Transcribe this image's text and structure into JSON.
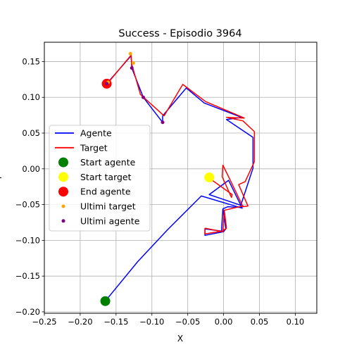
{
  "chart_data": {
    "type": "line",
    "title": "Success - Episodio 3964",
    "xlabel": "X",
    "ylabel": "Y",
    "xlim": [
      -0.25,
      0.13
    ],
    "ylim": [
      -0.202,
      0.177
    ],
    "xticks": [
      -0.25,
      -0.2,
      -0.15,
      -0.1,
      -0.05,
      0.0,
      0.05,
      0.1
    ],
    "xtick_labels": [
      "−0.25",
      "−0.20",
      "−0.15",
      "−0.10",
      "−0.05",
      "0.00",
      "0.05",
      "0.10"
    ],
    "yticks": [
      -0.2,
      -0.15,
      -0.1,
      -0.05,
      0.0,
      0.05,
      0.1,
      0.15
    ],
    "ytick_labels": [
      "−0.20",
      "−0.15",
      "−0.10",
      "−0.05",
      "0.00",
      "0.05",
      "0.10",
      "0.15"
    ],
    "grid": true,
    "legend_position": "center-left",
    "series": [
      {
        "name": "Agente",
        "kind": "line",
        "color": "#0000ff",
        "points": [
          [
            -0.165,
            -0.185
          ],
          [
            -0.12,
            -0.13
          ],
          [
            -0.078,
            -0.085
          ],
          [
            -0.031,
            -0.038
          ],
          [
            0.026,
            -0.055
          ],
          [
            0.007,
            -0.016
          ],
          [
            -0.02,
            -0.036
          ],
          [
            0.024,
            -0.051
          ],
          [
            0.041,
            0.001
          ],
          [
            0.041,
            0.044
          ],
          [
            0.004,
            0.069
          ],
          [
            0.025,
            0.072
          ],
          [
            -0.027,
            0.092
          ],
          [
            -0.052,
            0.113
          ],
          [
            -0.085,
            0.074
          ],
          [
            -0.085,
            0.065
          ],
          [
            -0.112,
            0.1
          ],
          [
            -0.128,
            0.141
          ],
          [
            -0.129,
            0.158
          ],
          [
            -0.163,
            0.119
          ]
        ]
      },
      {
        "name": "Target",
        "kind": "line",
        "color": "#ff0000",
        "points": [
          [
            -0.02,
            -0.013
          ],
          [
            0.012,
            -0.036
          ],
          [
            0.011,
            -0.04
          ],
          [
            -0.002,
            -0.011
          ],
          [
            -0.001,
            0.005
          ],
          [
            0.007,
            -0.011
          ],
          [
            0.027,
            -0.053
          ],
          [
            0.034,
            -0.052
          ],
          [
            0.021,
            -0.022
          ],
          [
            0.03,
            -0.018
          ],
          [
            0.043,
            0.01
          ],
          [
            0.043,
            0.052
          ],
          [
            0.027,
            0.067
          ],
          [
            0.004,
            0.072
          ],
          [
            0.029,
            0.071
          ],
          [
            -0.025,
            0.094
          ],
          [
            -0.057,
            0.118
          ],
          [
            -0.083,
            0.074
          ],
          [
            -0.116,
            0.104
          ],
          [
            -0.128,
            0.146
          ],
          [
            -0.129,
            0.159
          ],
          [
            -0.163,
            0.118
          ]
        ]
      },
      {
        "name": "Ultimi target",
        "kind": "scatter",
        "color": "#ffa500",
        "points": [
          [
            -0.13,
            0.161
          ],
          [
            -0.126,
            0.148
          ],
          [
            -0.161,
            0.121
          ]
        ]
      },
      {
        "name": "Ultimi agente",
        "kind": "scatter",
        "color": "#800080",
        "points": [
          [
            -0.128,
            0.141
          ],
          [
            -0.112,
            0.1
          ],
          [
            -0.085,
            0.065
          ],
          [
            -0.163,
            0.119
          ]
        ]
      },
      {
        "name": "Start agente",
        "kind": "marker",
        "color": "#008000",
        "points": [
          [
            -0.165,
            -0.185
          ]
        ]
      },
      {
        "name": "Start target",
        "kind": "marker",
        "color": "#ffff00",
        "points": [
          [
            -0.02,
            -0.012
          ]
        ]
      },
      {
        "name": "End agente",
        "kind": "marker",
        "color": "#ff0000",
        "points": [
          [
            -0.163,
            0.119
          ]
        ]
      }
    ],
    "extra_segments": {
      "agent": [
        [
          [
            -0.026,
            -0.084
          ],
          [
            -0.026,
            -0.093
          ],
          [
            0.0,
            -0.088
          ],
          [
            0.003,
            -0.084
          ],
          [
            -0.001,
            -0.056
          ],
          [
            0.006,
            -0.053
          ],
          [
            0.026,
            -0.054
          ]
        ],
        [
          [
            -0.026,
            -0.084
          ],
          [
            -0.003,
            -0.087
          ],
          [
            -0.001,
            -0.056
          ]
        ]
      ],
      "target": [
        [
          [
            -0.026,
            -0.083
          ],
          [
            -0.026,
            -0.091
          ],
          [
            -0.002,
            -0.087
          ],
          [
            0.004,
            -0.083
          ],
          [
            0.001,
            -0.058
          ],
          [
            0.022,
            -0.053
          ],
          [
            0.028,
            -0.052
          ]
        ],
        [
          [
            -0.026,
            -0.083
          ],
          [
            -0.001,
            -0.088
          ],
          [
            0.001,
            -0.058
          ]
        ]
      ]
    }
  },
  "legend": {
    "items": [
      {
        "label": "Agente",
        "symbol": "line",
        "color": "#0000ff"
      },
      {
        "label": "Target",
        "symbol": "line",
        "color": "#ff0000"
      },
      {
        "label": "Start agente",
        "symbol": "dot-large",
        "color": "#008000"
      },
      {
        "label": "Start target",
        "symbol": "dot-large",
        "color": "#ffff00"
      },
      {
        "label": "End agente",
        "symbol": "dot-large",
        "color": "#ff0000"
      },
      {
        "label": "Ultimi target",
        "symbol": "dot-small",
        "color": "#ffa500"
      },
      {
        "label": "Ultimi agente",
        "symbol": "dot-small",
        "color": "#800080"
      }
    ]
  }
}
